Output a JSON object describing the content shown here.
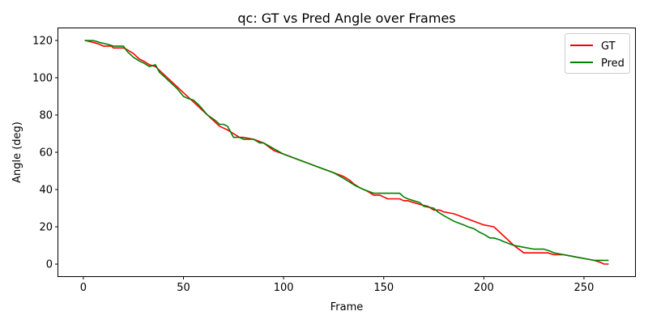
{
  "chart_data": {
    "type": "line",
    "title": "qc: GT vs Pred Angle over Frames",
    "xlabel": "Frame",
    "ylabel": "Angle (deg)",
    "xlim": [
      -12.5,
      275.5
    ],
    "ylim": [
      -6.5,
      126.5
    ],
    "xticks": [
      0,
      50,
      100,
      150,
      200,
      250
    ],
    "yticks": [
      0,
      20,
      40,
      60,
      80,
      100,
      120
    ],
    "grid": false,
    "legend_position": "top-right",
    "series": [
      {
        "name": "GT",
        "color": "#ff0000",
        "points": [
          [
            1,
            120
          ],
          [
            5,
            119
          ],
          [
            8,
            118
          ],
          [
            10,
            117
          ],
          [
            14,
            117
          ],
          [
            15,
            116
          ],
          [
            20,
            116
          ],
          [
            22,
            115
          ],
          [
            25,
            113
          ],
          [
            28,
            110
          ],
          [
            30,
            109
          ],
          [
            33,
            107
          ],
          [
            36,
            106
          ],
          [
            40,
            102
          ],
          [
            45,
            97
          ],
          [
            50,
            92
          ],
          [
            55,
            87
          ],
          [
            60,
            82
          ],
          [
            65,
            77
          ],
          [
            68,
            74
          ],
          [
            72,
            72
          ],
          [
            75,
            70
          ],
          [
            78,
            68
          ],
          [
            80,
            68
          ],
          [
            85,
            67
          ],
          [
            90,
            65
          ],
          [
            95,
            61
          ],
          [
            100,
            59
          ],
          [
            105,
            57
          ],
          [
            110,
            55
          ],
          [
            115,
            53
          ],
          [
            120,
            51
          ],
          [
            125,
            49
          ],
          [
            130,
            47
          ],
          [
            133,
            45
          ],
          [
            135,
            43
          ],
          [
            138,
            41
          ],
          [
            142,
            39
          ],
          [
            145,
            37
          ],
          [
            148,
            37
          ],
          [
            150,
            36
          ],
          [
            152,
            35
          ],
          [
            158,
            35
          ],
          [
            160,
            34
          ],
          [
            162,
            34
          ],
          [
            165,
            33
          ],
          [
            168,
            32
          ],
          [
            172,
            31
          ],
          [
            175,
            29
          ],
          [
            178,
            29
          ],
          [
            180,
            28
          ],
          [
            185,
            27
          ],
          [
            190,
            25
          ],
          [
            195,
            23
          ],
          [
            200,
            21
          ],
          [
            205,
            20
          ],
          [
            210,
            15
          ],
          [
            215,
            10
          ],
          [
            220,
            6
          ],
          [
            225,
            6
          ],
          [
            232,
            6
          ],
          [
            235,
            5
          ],
          [
            240,
            5
          ],
          [
            245,
            4
          ],
          [
            250,
            3
          ],
          [
            255,
            2
          ],
          [
            258,
            1
          ],
          [
            260,
            0
          ],
          [
            262,
            0
          ]
        ]
      },
      {
        "name": "Pred",
        "color": "#008000",
        "points": [
          [
            1,
            120
          ],
          [
            5,
            120
          ],
          [
            8,
            119
          ],
          [
            12,
            118
          ],
          [
            15,
            117
          ],
          [
            18,
            117
          ],
          [
            20,
            117
          ],
          [
            22,
            114
          ],
          [
            25,
            111
          ],
          [
            28,
            109
          ],
          [
            30,
            108
          ],
          [
            33,
            106
          ],
          [
            36,
            107
          ],
          [
            38,
            103
          ],
          [
            40,
            101
          ],
          [
            43,
            98
          ],
          [
            47,
            94
          ],
          [
            50,
            90
          ],
          [
            52,
            89
          ],
          [
            55,
            88
          ],
          [
            58,
            85
          ],
          [
            62,
            80
          ],
          [
            66,
            77
          ],
          [
            68,
            75
          ],
          [
            70,
            75
          ],
          [
            72,
            74
          ],
          [
            73,
            72
          ],
          [
            75,
            68
          ],
          [
            78,
            68
          ],
          [
            80,
            67
          ],
          [
            85,
            67
          ],
          [
            88,
            65
          ],
          [
            90,
            65
          ],
          [
            95,
            62
          ],
          [
            100,
            59
          ],
          [
            105,
            57
          ],
          [
            110,
            55
          ],
          [
            115,
            53
          ],
          [
            120,
            51
          ],
          [
            125,
            49
          ],
          [
            130,
            46
          ],
          [
            133,
            44
          ],
          [
            136,
            42
          ],
          [
            140,
            40
          ],
          [
            145,
            38
          ],
          [
            150,
            38
          ],
          [
            155,
            38
          ],
          [
            158,
            38
          ],
          [
            160,
            36
          ],
          [
            162,
            35
          ],
          [
            165,
            34
          ],
          [
            168,
            33
          ],
          [
            170,
            31
          ],
          [
            175,
            30
          ],
          [
            177,
            28
          ],
          [
            180,
            26
          ],
          [
            185,
            23
          ],
          [
            190,
            21
          ],
          [
            192,
            20
          ],
          [
            195,
            19
          ],
          [
            198,
            17
          ],
          [
            200,
            16
          ],
          [
            203,
            14
          ],
          [
            205,
            14
          ],
          [
            208,
            13
          ],
          [
            210,
            12
          ],
          [
            215,
            10
          ],
          [
            220,
            9
          ],
          [
            225,
            8
          ],
          [
            230,
            8
          ],
          [
            233,
            7
          ],
          [
            235,
            6
          ],
          [
            240,
            5
          ],
          [
            245,
            4
          ],
          [
            250,
            3
          ],
          [
            255,
            2
          ],
          [
            260,
            2
          ],
          [
            262,
            2
          ]
        ]
      }
    ]
  }
}
